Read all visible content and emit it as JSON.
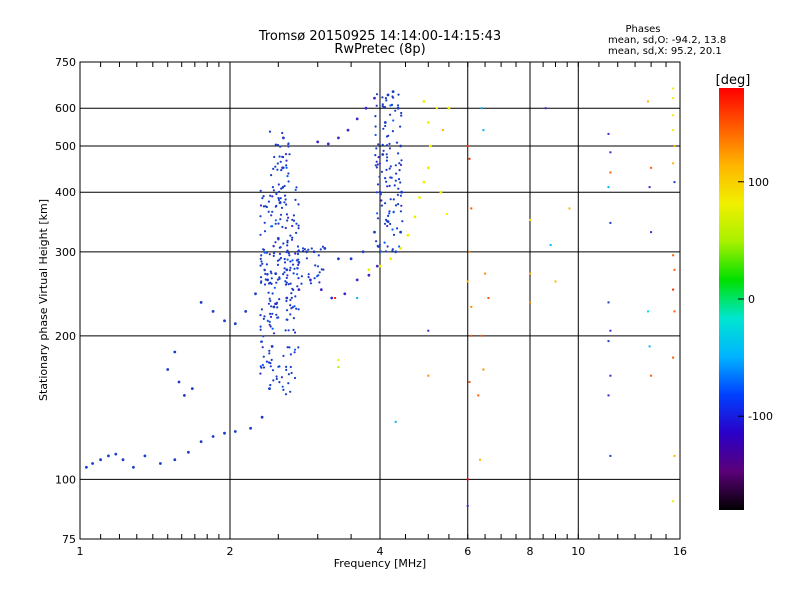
{
  "chart_data": {
    "type": "scatter",
    "title": "Tromsø 20150925 14:14:00-14:15:43",
    "subtitle": "RwPretec (8p)",
    "xlabel": "Frequency [MHz]",
    "ylabel": "Stationary phase Virtual Height [km]",
    "xscale": "log",
    "yscale": "log",
    "xlim": [
      1,
      16
    ],
    "ylim": [
      75,
      750
    ],
    "xticks": [
      {
        "value": 1,
        "label": "1"
      },
      {
        "value": 2,
        "label": "2"
      },
      {
        "value": 4,
        "label": "4"
      },
      {
        "value": 6,
        "label": "6"
      },
      {
        "value": 8,
        "label": "8"
      },
      {
        "value": 10,
        "label": "10"
      },
      {
        "value": 16,
        "label": "16"
      }
    ],
    "yticks": [
      {
        "value": 75,
        "label": "75"
      },
      {
        "value": 100,
        "label": "100"
      },
      {
        "value": 200,
        "label": "200"
      },
      {
        "value": 300,
        "label": "300"
      },
      {
        "value": 400,
        "label": "400"
      },
      {
        "value": 500,
        "label": "500"
      },
      {
        "value": 600,
        "label": "600"
      },
      {
        "value": 750,
        "label": "750"
      }
    ],
    "grid": true,
    "stats": {
      "heading": "Phases",
      "line1": "mean, sd,O:  -94.2, 13.8",
      "line2": "mean, sd,X:   95.2, 20.1"
    },
    "colorbar": {
      "label": "[deg]",
      "range": [
        -180,
        180
      ],
      "ticks": [
        {
          "value": 100,
          "label": "100"
        },
        {
          "value": 0,
          "label": "0"
        },
        {
          "value": -100,
          "label": "-100"
        }
      ],
      "colormap": [
        "#000000",
        "#5a0078",
        "#2a00c8",
        "#0040ff",
        "#00b4ff",
        "#00e6d0",
        "#00e000",
        "#a8f000",
        "#f0f000",
        "#ffb400",
        "#ff5a00",
        "#ff0000"
      ]
    },
    "series": [
      {
        "color": "#1a3cc8",
        "phase": -100,
        "points": [
          [
            1.03,
            106
          ],
          [
            1.06,
            108
          ],
          [
            1.1,
            110
          ],
          [
            1.14,
            112
          ],
          [
            1.18,
            113
          ],
          [
            1.22,
            110
          ],
          [
            1.28,
            106
          ],
          [
            1.35,
            112
          ],
          [
            1.45,
            108
          ],
          [
            1.55,
            110
          ],
          [
            1.65,
            114
          ],
          [
            1.75,
            120
          ],
          [
            1.85,
            123
          ],
          [
            1.95,
            125
          ],
          [
            2.05,
            126
          ],
          [
            2.2,
            128
          ],
          [
            2.32,
            135
          ],
          [
            2.4,
            155
          ],
          [
            2.43,
            190
          ],
          [
            2.45,
            230
          ],
          [
            2.47,
            270
          ],
          [
            2.5,
            320
          ],
          [
            2.52,
            380
          ],
          [
            2.55,
            450
          ],
          [
            2.56,
            520
          ],
          [
            1.55,
            185
          ],
          [
            1.58,
            160
          ],
          [
            1.62,
            150
          ],
          [
            1.68,
            155
          ],
          [
            1.5,
            170
          ],
          [
            1.75,
            235
          ],
          [
            1.85,
            225
          ],
          [
            1.95,
            215
          ],
          [
            2.05,
            212
          ],
          [
            2.15,
            225
          ],
          [
            2.25,
            245
          ],
          [
            2.38,
            262
          ],
          [
            2.6,
            275
          ],
          [
            2.75,
            285
          ],
          [
            2.85,
            300
          ],
          [
            2.95,
            300
          ],
          [
            3.1,
            305
          ],
          [
            3.3,
            290
          ],
          [
            3.5,
            290
          ],
          [
            3.7,
            300
          ],
          [
            3.9,
            330
          ],
          [
            4.0,
            400
          ],
          [
            4.05,
            480
          ],
          [
            4.1,
            560
          ],
          [
            4.15,
            640
          ],
          [
            4.25,
            650
          ],
          [
            4.35,
            600
          ],
          [
            4.4,
            500
          ],
          [
            4.42,
            400
          ],
          [
            4.4,
            330
          ],
          [
            4.3,
            300
          ]
        ]
      },
      {
        "color": "#3a28d0",
        "phase": -110,
        "points": [
          [
            2.6,
            240
          ],
          [
            2.75,
            250
          ],
          [
            2.9,
            262
          ],
          [
            3.05,
            250
          ],
          [
            3.2,
            240
          ],
          [
            3.4,
            245
          ],
          [
            3.6,
            262
          ],
          [
            3.8,
            268
          ],
          [
            3.95,
            280
          ],
          [
            3.0,
            510
          ],
          [
            3.15,
            505
          ],
          [
            3.3,
            520
          ],
          [
            3.45,
            540
          ],
          [
            3.6,
            570
          ],
          [
            3.75,
            600
          ],
          [
            3.9,
            630
          ]
        ]
      },
      {
        "color": "#f0f000",
        "phase": 100,
        "points": [
          [
            3.8,
            275
          ],
          [
            4.0,
            280
          ],
          [
            4.2,
            290
          ],
          [
            4.4,
            305
          ],
          [
            4.55,
            325
          ],
          [
            4.7,
            355
          ],
          [
            4.8,
            390
          ],
          [
            4.9,
            420
          ],
          [
            5.0,
            450
          ],
          [
            5.05,
            500
          ],
          [
            5.0,
            560
          ],
          [
            4.9,
            620
          ],
          [
            5.3,
            400
          ],
          [
            5.5,
            600
          ]
        ]
      }
    ],
    "band": {
      "phase": -100,
      "regions": [
        {
          "f": [
            2.3,
            2.75
          ],
          "h": [
            150,
            420
          ]
        },
        {
          "f": [
            2.4,
            2.65
          ],
          "h": [
            420,
            540
          ]
        },
        {
          "f": [
            2.3,
            3.1
          ],
          "h": [
            255,
            310
          ]
        },
        {
          "f": [
            3.9,
            4.45
          ],
          "h": [
            300,
            650
          ]
        }
      ]
    },
    "scattered_points": [
      [
        6.0,
        500,
        "#ff2a00"
      ],
      [
        6.05,
        470,
        "#ff2a00"
      ],
      [
        6.1,
        370,
        "#ff5a00"
      ],
      [
        6.05,
        300,
        "#ff8a00"
      ],
      [
        6.0,
        260,
        "#ffb400"
      ],
      [
        6.1,
        230,
        "#ff8a00"
      ],
      [
        6.1,
        200,
        "#ff5a00"
      ],
      [
        6.05,
        160,
        "#ff5a00"
      ],
      [
        6.0,
        100,
        "#ff0000"
      ],
      [
        6.0,
        88,
        "#3a28d0"
      ],
      [
        6.4,
        600,
        "#00b4ff"
      ],
      [
        6.45,
        540,
        "#00b4ff"
      ],
      [
        6.5,
        270,
        "#ff8a00"
      ],
      [
        6.6,
        240,
        "#ff5a00"
      ],
      [
        6.4,
        200,
        "#ff5a00"
      ],
      [
        6.45,
        170,
        "#ff8a00"
      ],
      [
        6.35,
        110,
        "#ffb400"
      ],
      [
        6.3,
        150,
        "#ff5a00"
      ],
      [
        5.2,
        600,
        "#f0f000"
      ],
      [
        5.35,
        540,
        "#ffb400"
      ],
      [
        5.45,
        360,
        "#f0f000"
      ],
      [
        5.0,
        205,
        "#3a28d0"
      ],
      [
        4.3,
        132,
        "#00b4ff"
      ],
      [
        3.3,
        178,
        "#f0f000"
      ],
      [
        3.3,
        172,
        "#a8f000"
      ],
      [
        3.25,
        240,
        "#ff2a00"
      ],
      [
        3.6,
        240,
        "#00b4ff"
      ],
      [
        5.0,
        165,
        "#ff8a00"
      ],
      [
        8.0,
        350,
        "#f0f000"
      ],
      [
        8.0,
        270,
        "#ffb400"
      ],
      [
        8.0,
        235,
        "#ff8a00"
      ],
      [
        8.6,
        600,
        "#3a28d0"
      ],
      [
        8.8,
        310,
        "#00b4ff"
      ],
      [
        9.0,
        260,
        "#ffb400"
      ],
      [
        9.6,
        370,
        "#ffb400"
      ],
      [
        11.5,
        530,
        "#3a28d0"
      ],
      [
        11.6,
        485,
        "#3a28d0"
      ],
      [
        11.6,
        440,
        "#ff5a00"
      ],
      [
        11.5,
        410,
        "#00b4ff"
      ],
      [
        11.6,
        345,
        "#1a3cc8"
      ],
      [
        11.5,
        235,
        "#1a3cc8"
      ],
      [
        11.6,
        205,
        "#3a28d0"
      ],
      [
        11.5,
        195,
        "#1a3cc8"
      ],
      [
        11.6,
        165,
        "#3a28d0"
      ],
      [
        11.5,
        150,
        "#3a28d0"
      ],
      [
        11.6,
        112,
        "#1a3cc8"
      ],
      [
        13.8,
        620,
        "#ffb400"
      ],
      [
        14.0,
        450,
        "#ff5a00"
      ],
      [
        13.9,
        410,
        "#3a28d0"
      ],
      [
        14.0,
        330,
        "#3a28d0"
      ],
      [
        13.8,
        225,
        "#00e6d0"
      ],
      [
        13.9,
        190,
        "#00b4ff"
      ],
      [
        14.0,
        165,
        "#ff5a00"
      ],
      [
        15.5,
        660,
        "#f0f000"
      ],
      [
        15.5,
        630,
        "#f0f000"
      ],
      [
        15.5,
        580,
        "#f0f000"
      ],
      [
        15.5,
        540,
        "#f0f000"
      ],
      [
        15.6,
        500,
        "#ffb400"
      ],
      [
        15.5,
        460,
        "#ffb400"
      ],
      [
        15.6,
        420,
        "#1a3cc8"
      ],
      [
        15.5,
        295,
        "#ff5a00"
      ],
      [
        15.6,
        275,
        "#ff5a00"
      ],
      [
        15.5,
        250,
        "#ff2a00"
      ],
      [
        15.6,
        225,
        "#ff5a00"
      ],
      [
        15.5,
        180,
        "#ff5a00"
      ],
      [
        15.6,
        112,
        "#ffb400"
      ],
      [
        15.5,
        90,
        "#f0f000"
      ]
    ]
  }
}
